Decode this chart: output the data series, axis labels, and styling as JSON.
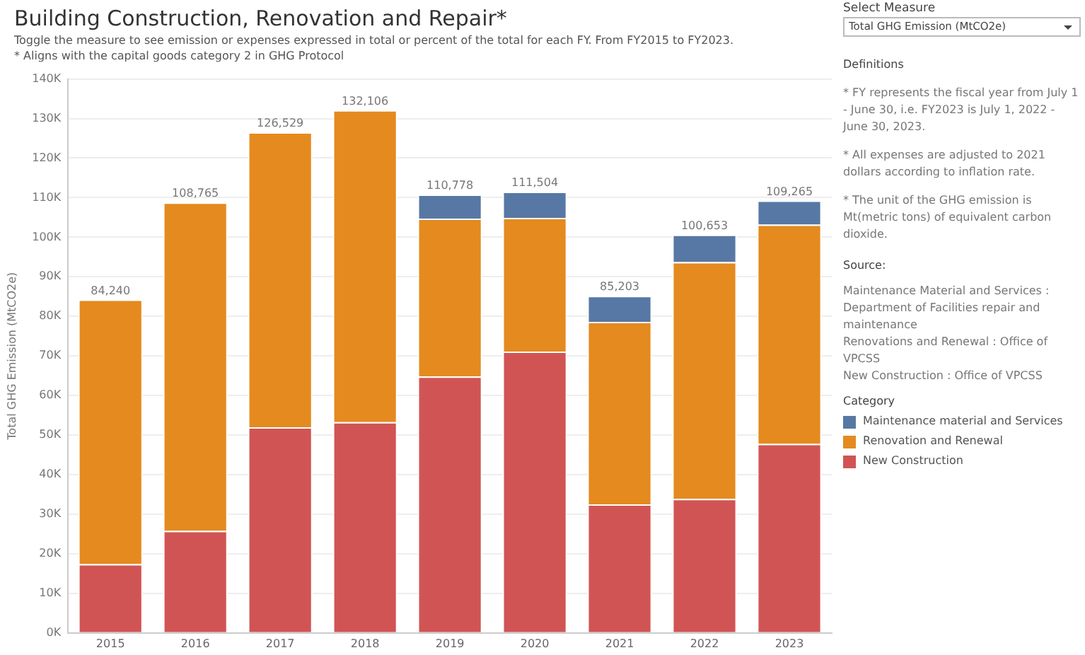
{
  "chart_data": {
    "type": "bar",
    "title": "Building Construction, Renovation and Repair*",
    "subtitle": "Toggle the measure to see emission or expenses expressed in total or percent of the total for each FY. From FY2015 to FY2023.",
    "ylabel": "Total GHG Emission (MtCO2e)",
    "legend_title": "Category",
    "legend": "right",
    "stacked": true,
    "grid": "y",
    "categories": [
      "2015",
      "2016",
      "2017",
      "2018",
      "2019",
      "2020",
      "2021",
      "2022",
      "2023"
    ],
    "series": [
      {
        "name": "New Construction",
        "color": "#d15454",
        "values": [
          17400,
          25800,
          52000,
          53300,
          64800,
          71100,
          32500,
          33900,
          47800
        ]
      },
      {
        "name": "Renovation and Renewal",
        "color": "#e48a1f",
        "values": [
          66840,
          82965,
          74529,
          78806,
          39900,
          33800,
          46100,
          59800,
          55400
        ]
      },
      {
        "name": "Maintenance material and Services",
        "color": "#5778a4",
        "values": [
          null,
          null,
          null,
          null,
          6078,
          6604,
          6603,
          6953,
          6065
        ]
      }
    ],
    "totals": [
      "84,240",
      "108,765",
      "126,529",
      "132,106",
      "110,778",
      "111,504",
      "85,203",
      "100,653",
      "109,265"
    ],
    "ylim": [
      0,
      140000
    ],
    "yticks": [
      {
        "value": 0,
        "label": "0K"
      },
      {
        "value": 10000,
        "label": "10K"
      },
      {
        "value": 20000,
        "label": "20K"
      },
      {
        "value": 30000,
        "label": "30K"
      },
      {
        "value": 40000,
        "label": "40K"
      },
      {
        "value": 50000,
        "label": "50K"
      },
      {
        "value": 60000,
        "label": "60K"
      },
      {
        "value": 70000,
        "label": "70K"
      },
      {
        "value": 80000,
        "label": "80K"
      },
      {
        "value": 90000,
        "label": "90K"
      },
      {
        "value": 100000,
        "label": "100K"
      },
      {
        "value": 110000,
        "label": "110K"
      },
      {
        "value": 120000,
        "label": "120K"
      },
      {
        "value": 130000,
        "label": "130K"
      },
      {
        "value": 140000,
        "label": "140K"
      }
    ],
    "annotations": [
      "* Aligns with the capital goods category 2 in GHG Protocol",
      "Select Measure",
      "Total GHG Emission (MtCO2e)",
      "Definitions",
      "* FY represents the fiscal year from July 1 - June 30, i.e. FY2023 is July 1, 2022 - June 30, 2023.",
      "* All expenses are adjusted to 2021 dollars according to inflation rate.",
      "* The unit of the GHG emission is Mt(metric tons) of equivalent carbon dioxide.",
      "Source:",
      "Maintenance Material and Services : Department of Facilities repair and maintenance",
      "Renovations and Renewal : Office of VPCSS",
      "New Construction : Office of VPCSS"
    ]
  }
}
